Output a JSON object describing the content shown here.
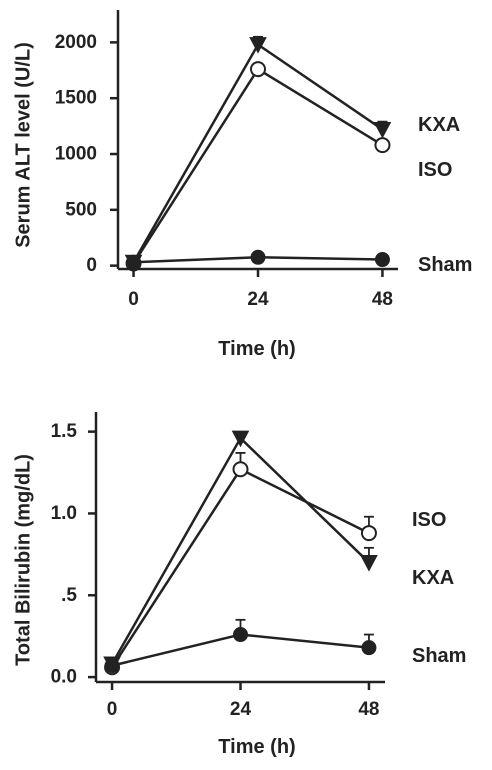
{
  "chart_data": [
    {
      "type": "line",
      "title": "",
      "xlabel": "Time (h)",
      "ylabel": "Serum ALT level (U/L)",
      "x": [
        0,
        24,
        48
      ],
      "x_tick_labels": [
        "0",
        "24",
        "48"
      ],
      "y_ticks": [
        0,
        500,
        1000,
        1500,
        2000
      ],
      "y_tick_labels": [
        "0",
        "500",
        "1000",
        "1500",
        "2000"
      ],
      "xlim": [
        -3,
        51
      ],
      "ylim": [
        -30,
        2290
      ],
      "grid": false,
      "legend": "none (series labelled at right)",
      "series": [
        {
          "name": "KXA",
          "marker": "triangle-down-filled",
          "values": [
            30,
            1980,
            1220
          ],
          "errors": [
            0,
            70,
            70
          ]
        },
        {
          "name": "ISO",
          "marker": "circle-open",
          "values": [
            20,
            1760,
            1080
          ],
          "errors": [
            0,
            50,
            50
          ]
        },
        {
          "name": "Sham",
          "marker": "circle-filled",
          "values": [
            30,
            75,
            55
          ],
          "errors": [
            0,
            10,
            10
          ]
        }
      ]
    },
    {
      "type": "line",
      "title": "",
      "xlabel": "Time (h)",
      "ylabel": "Total Bilirubin (mg/dL)",
      "x": [
        0,
        24,
        48
      ],
      "x_tick_labels": [
        "0",
        "24",
        "48"
      ],
      "y_ticks": [
        0,
        0.5,
        1.0,
        1.5
      ],
      "y_tick_labels": [
        "0.0",
        ".5",
        "1.0",
        "1.5"
      ],
      "xlim": [
        -3,
        51
      ],
      "ylim": [
        -0.03,
        1.62
      ],
      "grid": false,
      "legend": "none (series labelled at right)",
      "series": [
        {
          "name": "ISO",
          "marker": "circle-open",
          "values": [
            0.06,
            1.27,
            0.88
          ],
          "errors": [
            0,
            0.1,
            0.1
          ]
        },
        {
          "name": "KXA",
          "marker": "triangle-down-filled",
          "values": [
            0.08,
            1.46,
            0.7
          ],
          "errors": [
            0,
            0.03,
            0.09
          ]
        },
        {
          "name": "Sham",
          "marker": "circle-filled",
          "values": [
            0.07,
            0.26,
            0.18
          ],
          "errors": [
            0,
            0.09,
            0.08
          ]
        }
      ]
    }
  ]
}
